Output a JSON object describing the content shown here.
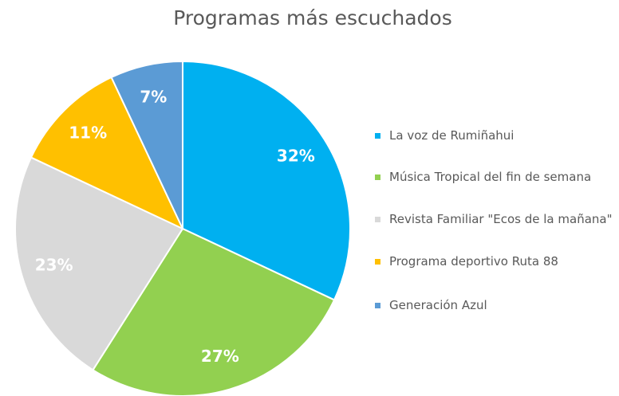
{
  "chart_data": {
    "type": "pie",
    "title": "Programas más escuchados",
    "categories": [
      "La voz de Rumiñahui",
      "Música Tropical del fin de semana",
      "Revista Familiar \"Ecos de la mañana\"",
      "Programa deportivo Ruta 88",
      "Generación Azul"
    ],
    "values": [
      32,
      27,
      23,
      11,
      7
    ],
    "value_labels": [
      "32%",
      "27%",
      "23%",
      "11%",
      "7%"
    ],
    "colors": [
      "#00b0f0",
      "#92d050",
      "#d9d9d9",
      "#ffc000",
      "#5b9bd5"
    ],
    "legend": "right"
  }
}
